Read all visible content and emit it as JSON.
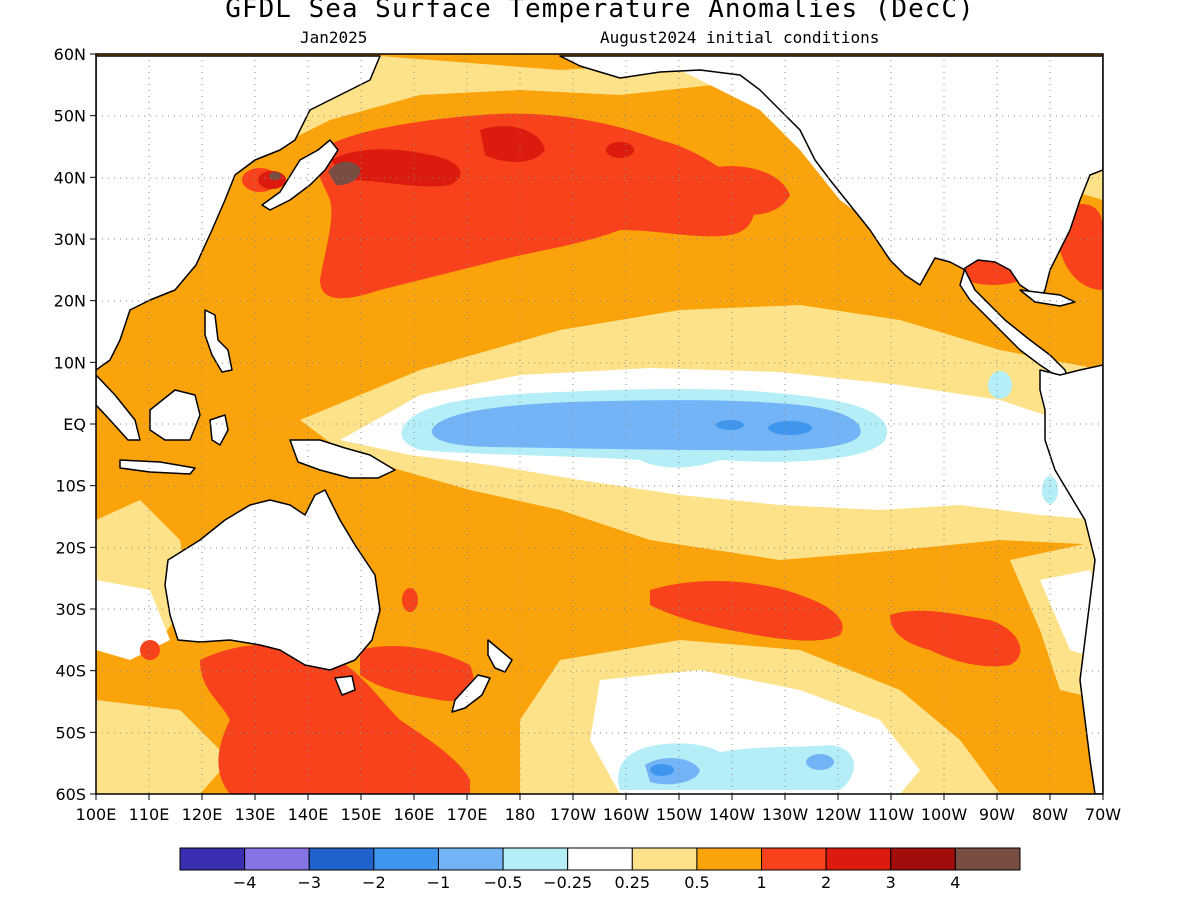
{
  "title": "GFDL Sea Surface Temperature Anomalies (DecC)",
  "subtitle_left": "Jan2025",
  "subtitle_right": "August2024 initial conditions",
  "lat_labels": [
    "60N",
    "50N",
    "40N",
    "30N",
    "20N",
    "10N",
    "EQ",
    "10S",
    "20S",
    "30S",
    "40S",
    "50S",
    "60S"
  ],
  "lon_labels": [
    "100E",
    "110E",
    "120E",
    "130E",
    "140E",
    "150E",
    "160E",
    "170E",
    "180",
    "170W",
    "160W",
    "150W",
    "140W",
    "130W",
    "120W",
    "110W",
    "100W",
    "90W",
    "80W",
    "70W"
  ],
  "colorbar": {
    "colors": [
      "#3a2fb0",
      "#8574e6",
      "#1f62cc",
      "#3f96ef",
      "#73b4f7",
      "#b6eef8",
      "#ffffff",
      "#fde28a",
      "#fba30b",
      "#f8421b",
      "#dc1a0e",
      "#a10d0a",
      "#7a4d42"
    ],
    "labels": [
      "−4",
      "−3",
      "−2",
      "−1",
      "−0.5",
      "−0.25",
      "0.25",
      "0.5",
      "1",
      "2",
      "3",
      "4"
    ]
  },
  "colors": {
    "frame": "#000000",
    "grid": "#888888",
    "land": "#ffffff",
    "coast": "#000000"
  }
}
